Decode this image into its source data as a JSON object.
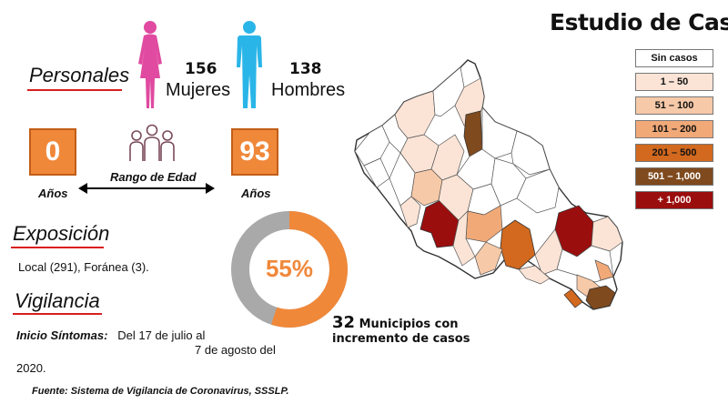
{
  "title": "Estudio de Caso",
  "personales": {
    "label": "Personales",
    "women_count": "156",
    "women_label": "Mujeres",
    "men_count": "138",
    "men_label": "Hombres"
  },
  "age": {
    "min_value": "0",
    "max_value": "93",
    "unit_label": "Años",
    "range_label": "Rango de Edad"
  },
  "exposicion": {
    "label": "Exposición",
    "text": "Local (291), Foránea (3)."
  },
  "vigilancia": {
    "label": "Vigilancia",
    "sintomas_label": "Inicio Síntomas:",
    "sintomas_line1": "Del 17 de julio al",
    "sintomas_line2": "7 de agosto del",
    "sintomas_line3": "2020."
  },
  "donut": {
    "label": "55%",
    "percent": 55,
    "colors": {
      "fill": "#f0883a",
      "rest": "#a9a9a9"
    }
  },
  "municipios": {
    "count": "32",
    "line1": "Municipios con",
    "line2": "incremento de casos"
  },
  "legend": [
    {
      "label": "Sin casos",
      "bg": "#ffffff",
      "fg": "#111111"
    },
    {
      "label": "1 – 50",
      "bg": "#fbe4d6",
      "fg": "#111111"
    },
    {
      "label": "51 – 100",
      "bg": "#f6c9a8",
      "fg": "#111111"
    },
    {
      "label": "101 – 200",
      "bg": "#f1a978",
      "fg": "#111111"
    },
    {
      "label": "201 – 500",
      "bg": "#d2691e",
      "fg": "#111111"
    },
    {
      "label": "501 – 1,000",
      "bg": "#7f4a1e",
      "fg": "#ffffff"
    },
    {
      "label": "+ 1,000",
      "bg": "#9b0e0e",
      "fg": "#ffffff"
    }
  ],
  "source": "Fuente: Sistema de Vigilancia de Coronavirus, SSSLP.",
  "colors": {
    "accent_orange": "#f0883a",
    "women_icon": "#e04aa0",
    "men_icon": "#2ab5e8",
    "people_icon": "#7a4b5a",
    "underline": "#d91f1f"
  },
  "icons": {
    "women": "woman-figure-icon",
    "men": "man-figure-icon",
    "group": "people-group-icon",
    "range_arrow": "double-arrow-icon"
  }
}
